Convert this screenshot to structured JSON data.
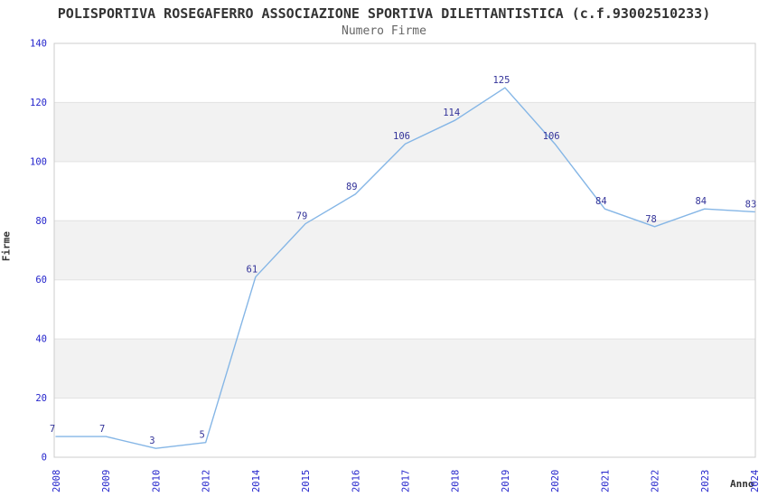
{
  "header": {
    "title": "POLISPORTIVA ROSEGAFERRO ASSOCIAZIONE SPORTIVA DILETTANTISTICA (c.f.93002510233)",
    "subtitle": "Numero Firme"
  },
  "chart_data": {
    "type": "line",
    "title": "POLISPORTIVA ROSEGAFERRO ASSOCIAZIONE SPORTIVA DILETTANTISTICA (c.f.93002510233)",
    "subtitle": "Numero Firme",
    "xlabel": "Anno",
    "ylabel": "Firme",
    "categories": [
      "2008",
      "2009",
      "2010",
      "2012",
      "2014",
      "2015",
      "2016",
      "2017",
      "2018",
      "2019",
      "2020",
      "2021",
      "2022",
      "2023",
      "2024"
    ],
    "values": [
      7,
      7,
      3,
      5,
      61,
      79,
      89,
      106,
      114,
      125,
      106,
      84,
      78,
      84,
      83
    ],
    "ylim": [
      0,
      140
    ],
    "yticks": [
      0,
      20,
      40,
      60,
      80,
      100,
      120,
      140
    ],
    "grid": "alternating-horizontal-bands",
    "legend": "none",
    "markers": "none",
    "data_labels": "above-points"
  },
  "colors": {
    "line": "#85b6e6",
    "point_label": "#333399",
    "tick_label": "#2525cc",
    "title": "#333333",
    "subtitle": "#666666",
    "axis_title": "#333333",
    "band": "#f2f2f2",
    "gridline": "#e2e2e2",
    "border": "#cccccc",
    "background": "#ffffff"
  }
}
